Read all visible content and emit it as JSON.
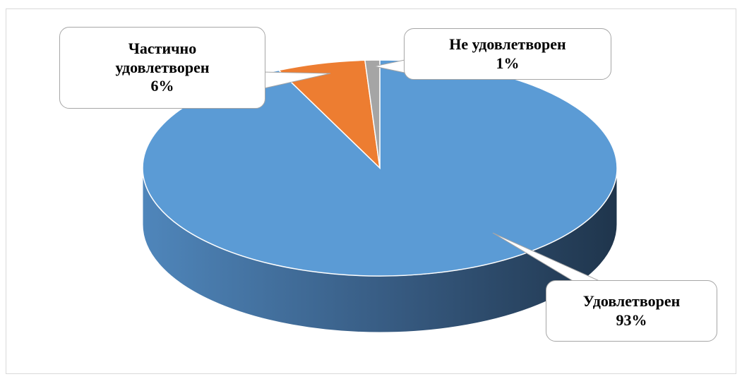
{
  "chart_data": {
    "type": "pie",
    "categories": [
      "Удовлетворен",
      "Частично удовлетворен",
      "Не удовлетворен"
    ],
    "values": [
      93,
      6,
      1
    ],
    "value_labels": [
      "93%",
      "6%",
      "1%"
    ],
    "colors": [
      "#5b9bd5",
      "#ed7d31",
      "#a5a5a5"
    ]
  }
}
